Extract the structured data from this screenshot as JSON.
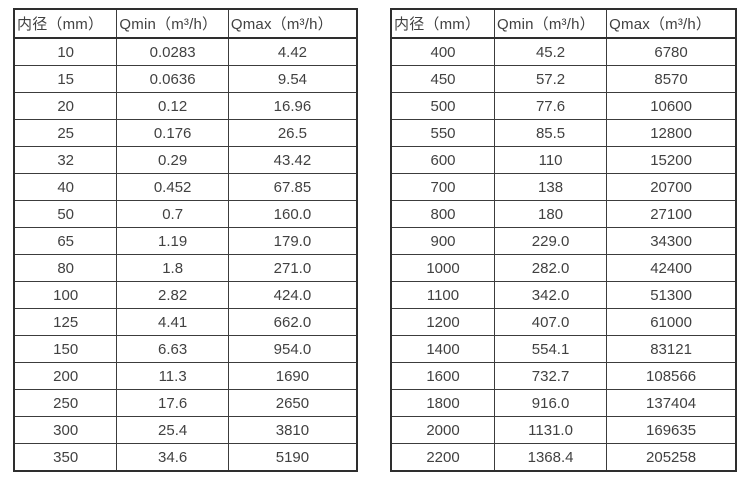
{
  "page": {
    "background": "#ffffff",
    "text_color": "#414141",
    "border_color": "#2e2e2e"
  },
  "chart_data": [
    {
      "type": "table",
      "title": "",
      "columns": [
        "内径（mm）",
        "Qmin（m³/h）",
        "Qmax（m³/h）"
      ],
      "column_keys": [
        "inner_diameter_mm",
        "qmin_m3_per_h",
        "qmax_m3_per_h"
      ],
      "rows": [
        [
          "10",
          "0.0283",
          "4.42"
        ],
        [
          "15",
          "0.0636",
          "9.54"
        ],
        [
          "20",
          "0.12",
          "16.96"
        ],
        [
          "25",
          "0.176",
          "26.5"
        ],
        [
          "32",
          "0.29",
          "43.42"
        ],
        [
          "40",
          "0.452",
          "67.85"
        ],
        [
          "50",
          "0.7",
          "160.0"
        ],
        [
          "65",
          "1.19",
          "179.0"
        ],
        [
          "80",
          "1.8",
          "271.0"
        ],
        [
          "100",
          "2.82",
          "424.0"
        ],
        [
          "125",
          "4.41",
          "662.0"
        ],
        [
          "150",
          "6.63",
          "954.0"
        ],
        [
          "200",
          "11.3",
          "1690"
        ],
        [
          "250",
          "17.6",
          "2650"
        ],
        [
          "300",
          "25.4",
          "3810"
        ],
        [
          "350",
          "34.6",
          "5190"
        ]
      ]
    },
    {
      "type": "table",
      "title": "",
      "columns": [
        "内径（mm）",
        "Qmin（m³/h）",
        "Qmax（m³/h）"
      ],
      "column_keys": [
        "inner_diameter_mm",
        "qmin_m3_per_h",
        "qmax_m3_per_h"
      ],
      "rows": [
        [
          "400",
          "45.2",
          "6780"
        ],
        [
          "450",
          "57.2",
          "8570"
        ],
        [
          "500",
          "77.6",
          "10600"
        ],
        [
          "550",
          "85.5",
          "12800"
        ],
        [
          "600",
          "110",
          "15200"
        ],
        [
          "700",
          "138",
          "20700"
        ],
        [
          "800",
          "180",
          "27100"
        ],
        [
          "900",
          "229.0",
          "34300"
        ],
        [
          "1000",
          "282.0",
          "42400"
        ],
        [
          "1100",
          "342.0",
          "51300"
        ],
        [
          "1200",
          "407.0",
          "61000"
        ],
        [
          "1400",
          "554.1",
          "83121"
        ],
        [
          "1600",
          "732.7",
          "108566"
        ],
        [
          "1800",
          "916.0",
          "137404"
        ],
        [
          "2000",
          "1131.0",
          "169635"
        ],
        [
          "2200",
          "1368.4",
          "205258"
        ]
      ]
    }
  ]
}
